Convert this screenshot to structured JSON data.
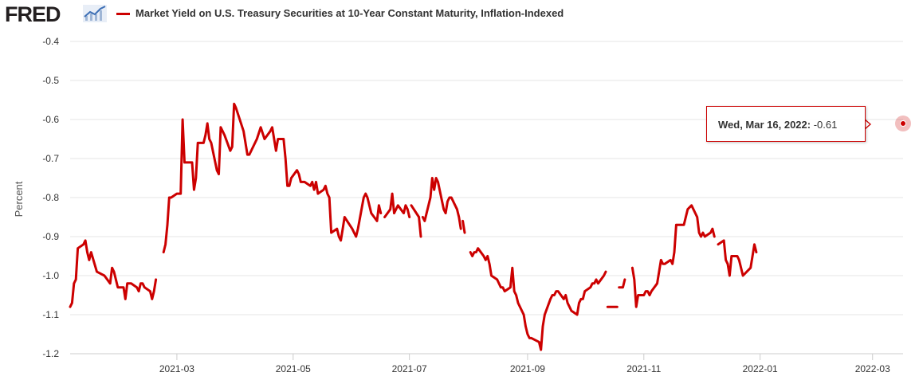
{
  "header": {
    "logo": "FRED",
    "logo_icon": "chart-trend-icon",
    "series_title": "Market Yield on U.S. Treasury Securities at 10-Year Constant Maturity, Inflation-Indexed"
  },
  "tooltip": {
    "date": "Wed, Mar 16, 2022:",
    "value": "-0.61"
  },
  "colors": {
    "series": "#cc0000",
    "grid": "#e6e6e6",
    "text": "#333333"
  },
  "chart_data": {
    "type": "line",
    "title": "Market Yield on U.S. Treasury Securities at 10-Year Constant Maturity, Inflation-Indexed",
    "xlabel": "",
    "ylabel": "Percent",
    "ylim": [
      -1.2,
      -0.4
    ],
    "yticks": [
      "-0.4",
      "-0.5",
      "-0.6",
      "-0.7",
      "-0.8",
      "-0.9",
      "-1.0",
      "-1.1",
      "-1.2"
    ],
    "xticks": [
      "2021-03",
      "2021-05",
      "2021-07",
      "2021-09",
      "2021-11",
      "2022-01",
      "2022-03"
    ],
    "xlim": [
      "2021-01-04",
      "2022-03-17"
    ],
    "grid": "horizontal",
    "series": [
      {
        "name": "Market Yield on U.S. Treasury Securities at 10-Year Constant Maturity, Inflation-Indexed",
        "points": [
          [
            "2021-01-04",
            -1.08
          ],
          [
            "2021-01-05",
            -1.07
          ],
          [
            "2021-01-06",
            -1.02
          ],
          [
            "2021-01-07",
            -1.01
          ],
          [
            "2021-01-08",
            -0.93
          ],
          [
            "2021-01-11",
            -0.92
          ],
          [
            "2021-01-12",
            -0.91
          ],
          [
            "2021-01-13",
            -0.94
          ],
          [
            "2021-01-14",
            -0.96
          ],
          [
            "2021-01-15",
            -0.94
          ],
          [
            "2021-01-18",
            -0.99
          ],
          [
            "2021-01-22",
            -1.0
          ],
          [
            "2021-01-25",
            -1.02
          ],
          [
            "2021-01-26",
            -0.98
          ],
          [
            "2021-01-27",
            -0.99
          ],
          [
            "2021-01-28",
            -1.01
          ],
          [
            "2021-01-29",
            -1.03
          ],
          [
            "2021-02-01",
            -1.03
          ],
          [
            "2021-02-02",
            -1.06
          ],
          [
            "2021-02-03",
            -1.02
          ],
          [
            "2021-02-04",
            -1.02
          ],
          [
            "2021-02-05",
            -1.02
          ],
          [
            "2021-02-08",
            -1.03
          ],
          [
            "2021-02-09",
            -1.04
          ],
          [
            "2021-02-10",
            -1.02
          ],
          [
            "2021-02-11",
            -1.02
          ],
          [
            "2021-02-12",
            -1.03
          ],
          [
            "2021-02-15",
            -1.04
          ],
          [
            "2021-02-16",
            -1.06
          ],
          [
            "2021-02-17",
            -1.04
          ],
          [
            "2021-02-18",
            -1.01
          ],
          null,
          [
            "2021-02-22",
            -0.94
          ],
          [
            "2021-02-23",
            -0.92
          ],
          [
            "2021-02-24",
            -0.87
          ],
          [
            "2021-02-25",
            -0.8
          ],
          [
            "2021-02-26",
            -0.8
          ],
          [
            "2021-03-01",
            -0.79
          ],
          [
            "2021-03-03",
            -0.79
          ],
          [
            "2021-03-04",
            -0.6
          ],
          [
            "2021-03-05",
            -0.71
          ],
          [
            "2021-03-08",
            -0.71
          ],
          [
            "2021-03-09",
            -0.71
          ],
          [
            "2021-03-10",
            -0.78
          ],
          [
            "2021-03-11",
            -0.75
          ],
          [
            "2021-03-12",
            -0.66
          ],
          [
            "2021-03-15",
            -0.66
          ],
          [
            "2021-03-16",
            -0.64
          ],
          [
            "2021-03-17",
            -0.61
          ],
          [
            "2021-03-18",
            -0.65
          ],
          [
            "2021-03-19",
            -0.66
          ],
          [
            "2021-03-22",
            -0.73
          ],
          [
            "2021-03-23",
            -0.74
          ],
          [
            "2021-03-24",
            -0.62
          ],
          [
            "2021-03-25",
            -0.63
          ],
          [
            "2021-03-26",
            -0.64
          ],
          [
            "2021-03-29",
            -0.68
          ],
          [
            "2021-03-30",
            -0.67
          ],
          [
            "2021-03-31",
            -0.56
          ],
          [
            "2021-04-01",
            -0.57
          ],
          [
            "2021-04-05",
            -0.63
          ],
          [
            "2021-04-07",
            -0.69
          ],
          [
            "2021-04-08",
            -0.69
          ],
          [
            "2021-04-12",
            -0.65
          ],
          [
            "2021-04-14",
            -0.62
          ],
          [
            "2021-04-16",
            -0.65
          ],
          [
            "2021-04-19",
            -0.63
          ],
          [
            "2021-04-20",
            -0.62
          ],
          [
            "2021-04-21",
            -0.65
          ],
          [
            "2021-04-22",
            -0.68
          ],
          [
            "2021-04-23",
            -0.65
          ],
          [
            "2021-04-26",
            -0.65
          ],
          [
            "2021-04-27",
            -0.7
          ],
          [
            "2021-04-28",
            -0.77
          ],
          [
            "2021-04-29",
            -0.77
          ],
          [
            "2021-04-30",
            -0.75
          ],
          [
            "2021-05-03",
            -0.73
          ],
          [
            "2021-05-04",
            -0.74
          ],
          [
            "2021-05-05",
            -0.76
          ],
          [
            "2021-05-06",
            -0.76
          ],
          [
            "2021-05-07",
            -0.76
          ],
          [
            "2021-05-10",
            -0.77
          ],
          [
            "2021-05-11",
            -0.76
          ],
          [
            "2021-05-12",
            -0.78
          ],
          [
            "2021-05-13",
            -0.76
          ],
          [
            "2021-05-14",
            -0.79
          ],
          [
            "2021-05-17",
            -0.78
          ],
          [
            "2021-05-18",
            -0.77
          ],
          [
            "2021-05-19",
            -0.79
          ],
          [
            "2021-05-20",
            -0.8
          ],
          [
            "2021-05-21",
            -0.89
          ],
          [
            "2021-05-24",
            -0.88
          ],
          [
            "2021-05-25",
            -0.9
          ],
          [
            "2021-05-26",
            -0.91
          ],
          [
            "2021-05-27",
            -0.88
          ],
          [
            "2021-05-28",
            -0.85
          ],
          [
            "2021-06-01",
            -0.88
          ],
          [
            "2021-06-02",
            -0.89
          ],
          [
            "2021-06-03",
            -0.9
          ],
          [
            "2021-06-04",
            -0.88
          ],
          [
            "2021-06-07",
            -0.8
          ],
          [
            "2021-06-08",
            -0.79
          ],
          [
            "2021-06-09",
            -0.8
          ],
          [
            "2021-06-10",
            -0.82
          ],
          [
            "2021-06-11",
            -0.84
          ],
          [
            "2021-06-14",
            -0.86
          ],
          [
            "2021-06-15",
            -0.82
          ],
          [
            "2021-06-16",
            -0.84
          ],
          null,
          [
            "2021-06-18",
            -0.85
          ],
          [
            "2021-06-21",
            -0.83
          ],
          [
            "2021-06-22",
            -0.79
          ],
          [
            "2021-06-23",
            -0.84
          ],
          [
            "2021-06-24",
            -0.83
          ],
          [
            "2021-06-25",
            -0.82
          ],
          [
            "2021-06-28",
            -0.84
          ],
          [
            "2021-06-29",
            -0.82
          ],
          [
            "2021-06-30",
            -0.83
          ],
          [
            "2021-07-01",
            -0.85
          ],
          null,
          [
            "2021-07-02",
            -0.82
          ],
          [
            "2021-07-06",
            -0.85
          ],
          [
            "2021-07-07",
            -0.9
          ],
          null,
          [
            "2021-07-08",
            -0.85
          ],
          [
            "2021-07-09",
            -0.86
          ],
          [
            "2021-07-12",
            -0.8
          ],
          [
            "2021-07-13",
            -0.75
          ],
          [
            "2021-07-14",
            -0.78
          ],
          [
            "2021-07-15",
            -0.75
          ],
          [
            "2021-07-16",
            -0.76
          ],
          [
            "2021-07-19",
            -0.83
          ],
          [
            "2021-07-20",
            -0.84
          ],
          [
            "2021-07-21",
            -0.81
          ],
          [
            "2021-07-22",
            -0.8
          ],
          [
            "2021-07-23",
            -0.8
          ],
          [
            "2021-07-26",
            -0.83
          ],
          [
            "2021-07-27",
            -0.85
          ],
          [
            "2021-07-28",
            -0.88
          ],
          null,
          [
            "2021-07-29",
            -0.86
          ],
          [
            "2021-07-30",
            -0.89
          ],
          null,
          [
            "2021-08-02",
            -0.94
          ],
          [
            "2021-08-03",
            -0.95
          ],
          [
            "2021-08-04",
            -0.94
          ],
          [
            "2021-08-05",
            -0.94
          ],
          [
            "2021-08-06",
            -0.93
          ],
          [
            "2021-08-09",
            -0.95
          ],
          [
            "2021-08-10",
            -0.96
          ],
          [
            "2021-08-11",
            -0.95
          ],
          [
            "2021-08-12",
            -0.97
          ],
          [
            "2021-08-13",
            -1.0
          ],
          [
            "2021-08-16",
            -1.01
          ],
          [
            "2021-08-17",
            -1.02
          ],
          [
            "2021-08-18",
            -1.03
          ],
          [
            "2021-08-19",
            -1.03
          ],
          [
            "2021-08-20",
            -1.04
          ],
          [
            "2021-08-23",
            -1.03
          ],
          [
            "2021-08-24",
            -0.98
          ],
          [
            "2021-08-25",
            -1.04
          ],
          [
            "2021-08-26",
            -1.05
          ],
          [
            "2021-08-27",
            -1.07
          ],
          [
            "2021-08-30",
            -1.1
          ],
          [
            "2021-08-31",
            -1.13
          ],
          [
            "2021-09-01",
            -1.15
          ],
          [
            "2021-09-02",
            -1.16
          ],
          [
            "2021-09-03",
            -1.16
          ],
          [
            "2021-09-07",
            -1.17
          ],
          [
            "2021-09-08",
            -1.19
          ],
          [
            "2021-09-09",
            -1.13
          ],
          [
            "2021-09-10",
            -1.1
          ],
          [
            "2021-09-13",
            -1.06
          ],
          [
            "2021-09-14",
            -1.05
          ],
          [
            "2021-09-15",
            -1.05
          ],
          [
            "2021-09-16",
            -1.04
          ],
          [
            "2021-09-17",
            -1.04
          ],
          [
            "2021-09-20",
            -1.06
          ],
          [
            "2021-09-21",
            -1.05
          ],
          [
            "2021-09-22",
            -1.07
          ],
          [
            "2021-09-23",
            -1.08
          ],
          [
            "2021-09-24",
            -1.09
          ],
          [
            "2021-09-27",
            -1.1
          ],
          [
            "2021-09-28",
            -1.07
          ],
          [
            "2021-09-29",
            -1.06
          ],
          [
            "2021-09-30",
            -1.06
          ],
          [
            "2021-10-01",
            -1.04
          ],
          [
            "2021-10-04",
            -1.03
          ],
          [
            "2021-10-05",
            -1.02
          ],
          [
            "2021-10-06",
            -1.02
          ],
          [
            "2021-10-07",
            -1.01
          ],
          [
            "2021-10-08",
            -1.02
          ],
          [
            "2021-10-11",
            -1.0
          ],
          [
            "2021-10-12",
            -0.99
          ],
          null,
          [
            "2021-10-13",
            -1.08
          ],
          [
            "2021-10-14",
            -1.08
          ],
          [
            "2021-10-15",
            -1.08
          ],
          [
            "2021-10-18",
            -1.08
          ],
          null,
          [
            "2021-10-19",
            -1.03
          ],
          [
            "2021-10-20",
            -1.03
          ],
          [
            "2021-10-21",
            -1.03
          ],
          [
            "2021-10-22",
            -1.01
          ],
          null,
          [
            "2021-10-26",
            -0.98
          ],
          [
            "2021-10-27",
            -1.01
          ],
          [
            "2021-10-28",
            -1.08
          ],
          [
            "2021-10-29",
            -1.05
          ],
          [
            "2021-11-01",
            -1.05
          ],
          [
            "2021-11-02",
            -1.04
          ],
          [
            "2021-11-03",
            -1.04
          ],
          [
            "2021-11-04",
            -1.05
          ],
          [
            "2021-11-05",
            -1.04
          ],
          [
            "2021-11-08",
            -1.02
          ],
          [
            "2021-11-09",
            -0.99
          ],
          [
            "2021-11-10",
            -0.96
          ],
          [
            "2021-11-11",
            -0.97
          ],
          [
            "2021-11-12",
            -0.97
          ],
          [
            "2021-11-15",
            -0.96
          ],
          [
            "2021-11-16",
            -0.97
          ],
          [
            "2021-11-17",
            -0.94
          ],
          [
            "2021-11-18",
            -0.87
          ],
          [
            "2021-11-19",
            -0.87
          ],
          [
            "2021-11-22",
            -0.87
          ],
          [
            "2021-11-23",
            -0.85
          ],
          [
            "2021-11-24",
            -0.83
          ],
          [
            "2021-11-26",
            -0.82
          ],
          [
            "2021-11-29",
            -0.85
          ],
          [
            "2021-11-30",
            -0.89
          ],
          [
            "2021-12-01",
            -0.9
          ],
          [
            "2021-12-02",
            -0.89
          ],
          [
            "2021-12-03",
            -0.9
          ],
          [
            "2021-12-06",
            -0.89
          ],
          [
            "2021-12-07",
            -0.88
          ],
          [
            "2021-12-08",
            -0.9
          ],
          null,
          [
            "2021-12-10",
            -0.92
          ],
          [
            "2021-12-13",
            -0.91
          ],
          [
            "2021-12-14",
            -0.96
          ],
          [
            "2021-12-15",
            -0.97
          ],
          [
            "2021-12-16",
            -1.0
          ],
          [
            "2021-12-17",
            -0.95
          ],
          [
            "2021-12-20",
            -0.95
          ],
          [
            "2021-12-21",
            -0.96
          ],
          [
            "2021-12-22",
            -0.98
          ],
          [
            "2021-12-23",
            -1.0
          ],
          [
            "2021-12-27",
            -0.98
          ],
          [
            "2021-12-28",
            -0.95
          ],
          [
            "2021-12-29",
            -0.92
          ],
          [
            "2021-12-30",
            -0.94
          ]
        ]
      }
    ]
  }
}
